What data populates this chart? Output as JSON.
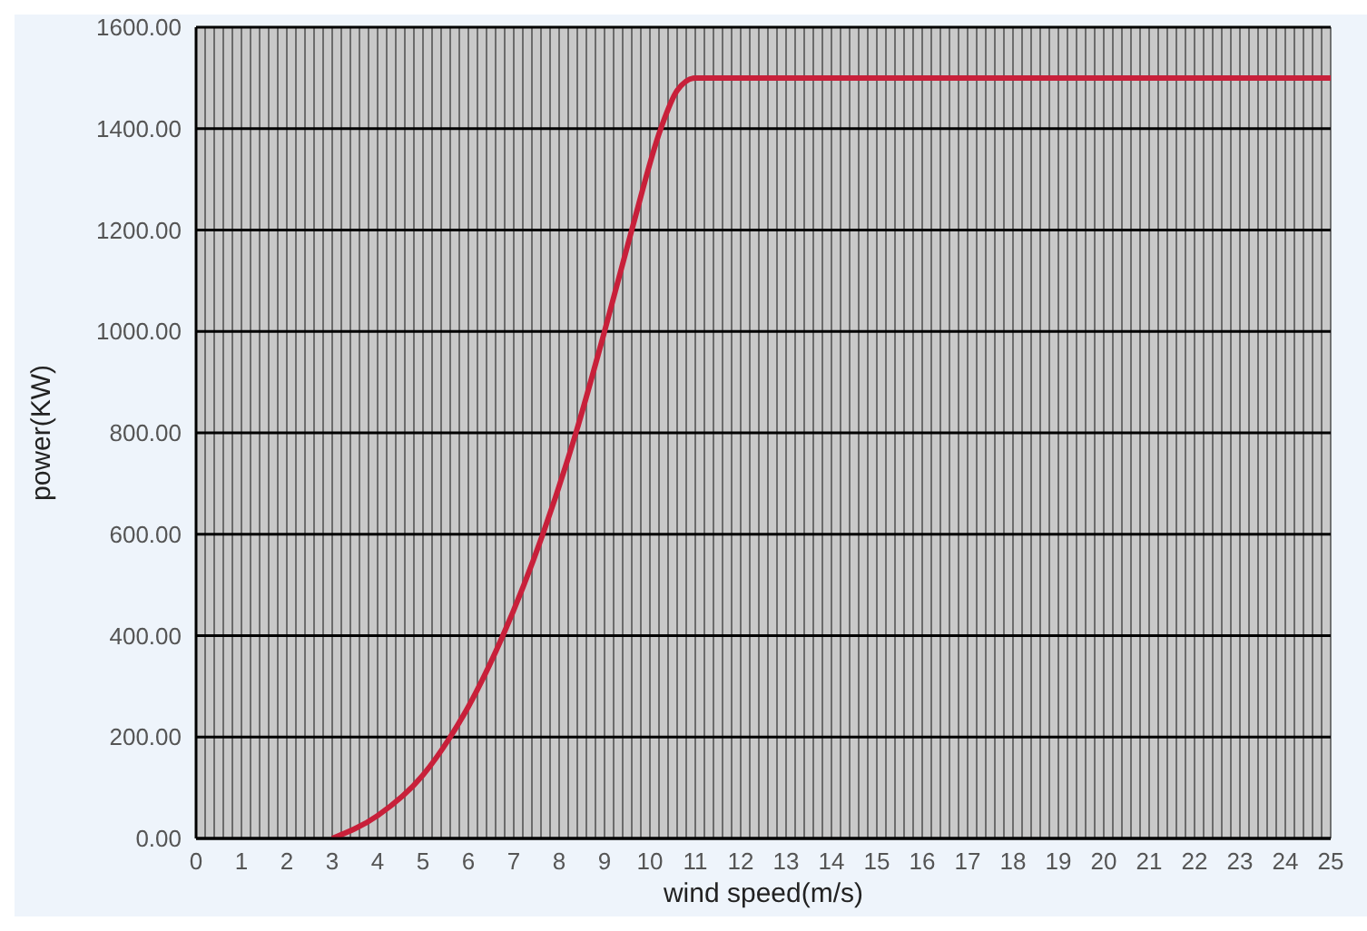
{
  "chart_data": {
    "type": "line",
    "xlabel": "wind speed(m/s)",
    "ylabel": "power(KW)",
    "x": [
      3,
      4,
      5,
      5.6,
      6,
      6.76,
      7.64,
      8.37,
      9,
      9.6,
      10.24,
      10.6,
      11,
      25
    ],
    "series": [
      {
        "color": "#c8203a",
        "values": [
          0,
          45,
          125,
          200,
          260,
          400,
          600,
          800,
          1000,
          1200,
          1400,
          1475,
          1500,
          1500
        ]
      }
    ],
    "xlim": [
      0,
      25
    ],
    "xticks": [
      0,
      {
        "value": 0.2,
        "label": null
      },
      {
        "value": 0.4,
        "label": null
      },
      {
        "value": 0.6,
        "label": null
      },
      {
        "value": 0.8,
        "label": null
      },
      1,
      {
        "value": 1.2,
        "label": null
      },
      {
        "value": 1.4,
        "label": null
      },
      {
        "value": 1.6,
        "label": null
      },
      {
        "value": 1.8,
        "label": null
      },
      2,
      {
        "value": 2.2,
        "label": null
      },
      {
        "value": 2.4,
        "label": null
      },
      {
        "value": 2.6,
        "label": null
      },
      {
        "value": 2.8,
        "label": null
      },
      3,
      {
        "value": 3.2,
        "label": null
      },
      {
        "value": 3.4,
        "label": null
      },
      {
        "value": 3.6,
        "label": null
      },
      {
        "value": 3.8,
        "label": null
      },
      4,
      {
        "value": 4.2,
        "label": null
      },
      {
        "value": 4.4,
        "label": null
      },
      {
        "value": 4.6,
        "label": null
      },
      {
        "value": 4.8,
        "label": null
      },
      5,
      {
        "value": 5.2,
        "label": null
      },
      {
        "value": 5.4,
        "label": null
      },
      {
        "value": 5.6,
        "label": null
      },
      {
        "value": 5.8,
        "label": null
      },
      6,
      {
        "value": 6.2,
        "label": null
      },
      {
        "value": 6.4,
        "label": null
      },
      {
        "value": 6.6,
        "label": null
      },
      {
        "value": 6.8,
        "label": null
      },
      7,
      {
        "value": 7.2,
        "label": null
      },
      {
        "value": 7.4,
        "label": null
      },
      {
        "value": 7.6,
        "label": null
      },
      {
        "value": 7.8,
        "label": null
      },
      8,
      {
        "value": 8.2,
        "label": null
      },
      {
        "value": 8.4,
        "label": null
      },
      {
        "value": 8.6,
        "label": null
      },
      {
        "value": 8.8,
        "label": null
      },
      9,
      {
        "value": 9.2,
        "label": null
      },
      {
        "value": 9.4,
        "label": null
      },
      {
        "value": 9.6,
        "label": null
      },
      {
        "value": 9.8,
        "label": null
      },
      10,
      {
        "value": 10.2,
        "label": null
      },
      {
        "value": 10.4,
        "label": null
      },
      {
        "value": 10.6,
        "label": null
      },
      {
        "value": 10.8,
        "label": null
      },
      11,
      {
        "value": 11.2,
        "label": null
      },
      {
        "value": 11.4,
        "label": null
      },
      {
        "value": 11.6,
        "label": null
      },
      {
        "value": 11.8,
        "label": null
      },
      12,
      {
        "value": 12.2,
        "label": null
      },
      {
        "value": 12.4,
        "label": null
      },
      {
        "value": 12.6,
        "label": null
      },
      {
        "value": 12.8,
        "label": null
      },
      13,
      {
        "value": 13.2,
        "label": null
      },
      {
        "value": 13.4,
        "label": null
      },
      {
        "value": 13.6,
        "label": null
      },
      {
        "value": 13.8,
        "label": null
      },
      14,
      {
        "value": 14.2,
        "label": null
      },
      {
        "value": 14.4,
        "label": null
      },
      {
        "value": 14.6,
        "label": null
      },
      {
        "value": 14.8,
        "label": null
      },
      15,
      {
        "value": 15.2,
        "label": null
      },
      {
        "value": 15.4,
        "label": null
      },
      {
        "value": 15.6,
        "label": null
      },
      {
        "value": 15.8,
        "label": null
      },
      16,
      {
        "value": 16.2,
        "label": null
      },
      {
        "value": 16.4,
        "label": null
      },
      {
        "value": 16.6,
        "label": null
      },
      {
        "value": 16.8,
        "label": null
      },
      17,
      {
        "value": 17.2,
        "label": null
      },
      {
        "value": 17.4,
        "label": null
      },
      {
        "value": 17.6,
        "label": null
      },
      {
        "value": 17.8,
        "label": null
      },
      18,
      {
        "value": 18.2,
        "label": null
      },
      {
        "value": 18.4,
        "label": null
      },
      {
        "value": 18.6,
        "label": null
      },
      {
        "value": 18.8,
        "label": null
      },
      19,
      {
        "value": 19.2,
        "label": null
      },
      {
        "value": 19.4,
        "label": null
      },
      {
        "value": 19.6,
        "label": null
      },
      {
        "value": 19.8,
        "label": null
      },
      20,
      {
        "value": 20.2,
        "label": null
      },
      {
        "value": 20.4,
        "label": null
      },
      {
        "value": 20.6,
        "label": null
      },
      {
        "value": 20.8,
        "label": null
      },
      21,
      {
        "value": 21.2,
        "label": null
      },
      {
        "value": 21.4,
        "label": null
      },
      {
        "value": 21.6,
        "label": null
      },
      {
        "value": 21.8,
        "label": null
      },
      22,
      {
        "value": 22.2,
        "label": null
      },
      {
        "value": 22.4,
        "label": null
      },
      {
        "value": 22.6,
        "label": null
      },
      {
        "value": 22.8,
        "label": null
      },
      23,
      {
        "value": 23.2,
        "label": null
      },
      {
        "value": 23.4,
        "label": null
      },
      {
        "value": 23.6,
        "label": null
      },
      {
        "value": 23.8,
        "label": null
      },
      24,
      {
        "value": 24.2,
        "label": null
      },
      {
        "value": 24.4,
        "label": null
      },
      {
        "value": 24.6,
        "label": null
      },
      {
        "value": 24.8,
        "label": null
      },
      25
    ],
    "ylim": [
      0,
      1600
    ],
    "yticks": [
      {
        "value": 0,
        "label": "0.00"
      },
      {
        "value": 200,
        "label": "200.00"
      },
      {
        "value": 400,
        "label": "400.00"
      },
      {
        "value": 600,
        "label": "600.00"
      },
      {
        "value": 800,
        "label": "800.00"
      },
      {
        "value": 1000,
        "label": "1000.00"
      },
      {
        "value": 1200,
        "label": "1200.00"
      },
      {
        "value": 1400,
        "label": "1400.00"
      },
      {
        "value": 1600,
        "label": "1600.00"
      }
    ],
    "grid": true,
    "marker": "none",
    "line_style": "solid",
    "legend": false
  }
}
